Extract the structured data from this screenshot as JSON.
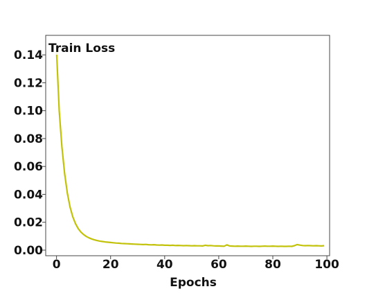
{
  "chart_data": {
    "type": "line",
    "title": "",
    "xlabel": "Epochs",
    "ylabel": "",
    "xlim": [
      -4,
      101
    ],
    "ylim": [
      -0.004,
      0.154
    ],
    "xticks": [
      0,
      20,
      40,
      60,
      80,
      100
    ],
    "xtick_labels": [
      "0",
      "20",
      "40",
      "60",
      "80",
      "100"
    ],
    "yticks": [
      0.0,
      0.02,
      0.04,
      0.06,
      0.08,
      0.1,
      0.12,
      0.14
    ],
    "ytick_labels": [
      "0.00",
      "0.02",
      "0.04",
      "0.06",
      "0.08",
      "0.10",
      "0.12",
      "0.14"
    ],
    "grid": false,
    "legend_position": "top-left",
    "series": [
      {
        "name": "Train Loss",
        "color": "#c2c20a",
        "x": [
          0,
          1,
          2,
          3,
          4,
          5,
          6,
          7,
          8,
          9,
          10,
          11,
          12,
          13,
          14,
          15,
          16,
          17,
          18,
          19,
          20,
          21,
          22,
          23,
          24,
          25,
          26,
          27,
          28,
          29,
          30,
          31,
          32,
          33,
          34,
          35,
          36,
          37,
          38,
          39,
          40,
          41,
          42,
          43,
          44,
          45,
          46,
          47,
          48,
          49,
          50,
          51,
          52,
          53,
          54,
          55,
          56,
          57,
          58,
          59,
          60,
          61,
          62,
          63,
          64,
          65,
          66,
          67,
          68,
          69,
          70,
          71,
          72,
          73,
          74,
          75,
          76,
          77,
          78,
          79,
          80,
          81,
          82,
          83,
          84,
          85,
          86,
          87,
          88,
          89,
          90,
          91,
          92,
          93,
          94,
          95,
          96,
          97,
          98,
          99
        ],
        "y": [
          0.143,
          0.1,
          0.074,
          0.055,
          0.041,
          0.031,
          0.024,
          0.019,
          0.0155,
          0.013,
          0.0112,
          0.0098,
          0.0088,
          0.008,
          0.0074,
          0.0069,
          0.0065,
          0.0062,
          0.0059,
          0.0057,
          0.0055,
          0.0053,
          0.0051,
          0.005,
          0.0048,
          0.0047,
          0.0046,
          0.0045,
          0.0044,
          0.0043,
          0.0042,
          0.0041,
          0.004,
          0.0041,
          0.0039,
          0.0038,
          0.0039,
          0.0037,
          0.0036,
          0.0037,
          0.0035,
          0.0035,
          0.0034,
          0.0035,
          0.0033,
          0.0034,
          0.0033,
          0.0032,
          0.0033,
          0.0032,
          0.0031,
          0.0032,
          0.0031,
          0.0031,
          0.003,
          0.0035,
          0.0032,
          0.0033,
          0.0031,
          0.003,
          0.003,
          0.0029,
          0.0028,
          0.0038,
          0.003,
          0.0029,
          0.0028,
          0.0029,
          0.0028,
          0.0028,
          0.0029,
          0.0028,
          0.0027,
          0.0028,
          0.0028,
          0.0027,
          0.0028,
          0.0029,
          0.0028,
          0.0028,
          0.0029,
          0.0028,
          0.0027,
          0.0028,
          0.0027,
          0.0027,
          0.0028,
          0.0027,
          0.0032,
          0.004,
          0.0036,
          0.0033,
          0.0032,
          0.0033,
          0.0032,
          0.0031,
          0.0032,
          0.0031,
          0.003,
          0.0032
        ]
      }
    ]
  }
}
